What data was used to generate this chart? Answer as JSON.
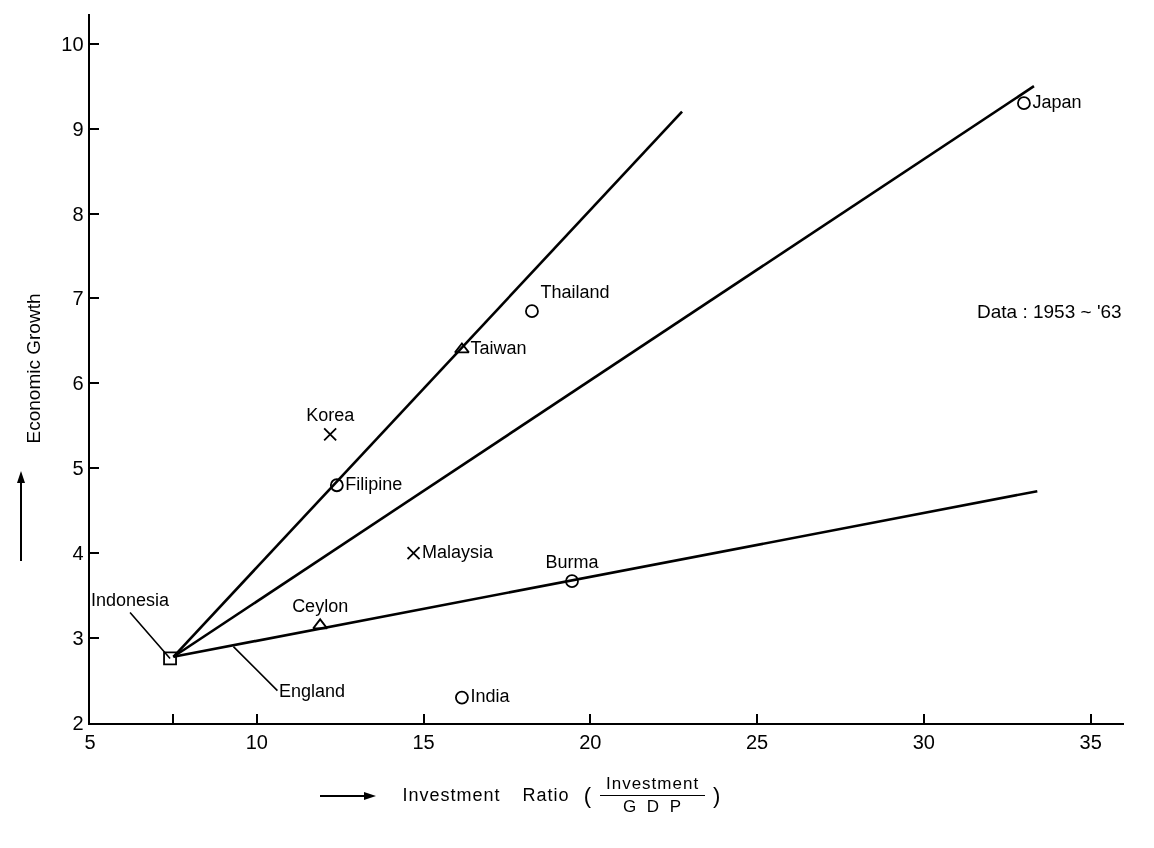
{
  "chart_data": {
    "type": "scatter",
    "xlabel": "Investment Ratio ( Investment\nG D P )",
    "ylabel": "Economic Growth",
    "xlim": [
      5,
      36
    ],
    "xticks": [
      5,
      {
        "value": 7.5,
        "label": null
      },
      10,
      15,
      20,
      25,
      30,
      35
    ],
    "ylim": [
      2,
      10.35
    ],
    "yticks": [
      2,
      3,
      4,
      5,
      6,
      7,
      8,
      9,
      10
    ],
    "series": [
      {
        "type": "line",
        "color": "#000000",
        "x": [
          7.5,
          22.75
        ],
        "values": [
          2.78,
          9.2
        ]
      },
      {
        "type": "line",
        "color": "#000000",
        "x": [
          7.5,
          33.3
        ],
        "values": [
          2.78,
          9.5
        ]
      },
      {
        "type": "line",
        "color": "#000000",
        "x": [
          7.5,
          33.4
        ],
        "values": [
          2.78,
          4.73
        ]
      },
      {
        "name": "Japan",
        "color": "#000000",
        "marker": "circle",
        "x": [
          33
        ],
        "values": [
          9.3
        ]
      },
      {
        "name": "Thailand",
        "color": "#000000",
        "marker": "circle",
        "x": [
          18.25
        ],
        "values": [
          6.85
        ]
      },
      {
        "name": "Taiwan",
        "color": "#000000",
        "marker": "triangle",
        "x": [
          16.15
        ],
        "values": [
          6.4
        ]
      },
      {
        "name": "Korea",
        "color": "#000000",
        "marker": "cross",
        "x": [
          12.2
        ],
        "values": [
          5.4
        ]
      },
      {
        "name": "Filipine",
        "color": "#000000",
        "marker": "circle",
        "x": [
          12.4
        ],
        "values": [
          4.8
        ]
      },
      {
        "name": "Malaysia",
        "color": "#000000",
        "marker": "cross",
        "x": [
          14.7
        ],
        "values": [
          4.0
        ]
      },
      {
        "name": "Burma",
        "color": "#000000",
        "marker": "circle",
        "x": [
          19.45
        ],
        "values": [
          3.67
        ]
      },
      {
        "name": "Ceylon",
        "color": "#000000",
        "marker": "triangle",
        "x": [
          11.9
        ],
        "values": [
          3.15
        ]
      },
      {
        "name": "India",
        "color": "#000000",
        "marker": "circle",
        "x": [
          16.15
        ],
        "values": [
          2.3
        ]
      },
      {
        "name": "Indonesia",
        "color": "#000000",
        "marker": "square",
        "x": [
          7.4
        ],
        "values": [
          2.76
        ]
      }
    ],
    "annotations": [
      "Data : 1953 ~ '63",
      {
        "text": "England",
        "x": 9.3,
        "y": 2.9
      }
    ]
  }
}
